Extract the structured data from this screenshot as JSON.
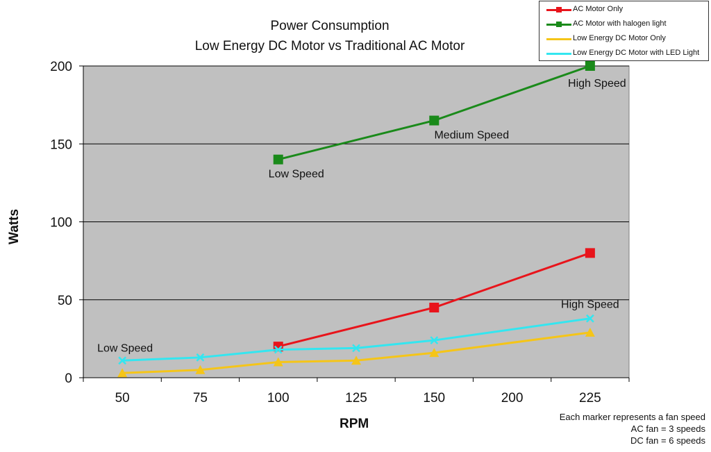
{
  "chart_data": {
    "type": "line",
    "title": "Power Consumption",
    "subtitle": "Low Energy DC Motor vs Traditional AC Motor",
    "xlabel": "RPM",
    "ylabel": "Watts",
    "categories": [
      "50",
      "75",
      "100",
      "125",
      "150",
      "200",
      "225"
    ],
    "ylim": [
      0,
      200
    ],
    "yticks": [
      "0",
      "50",
      "100",
      "150",
      "200"
    ],
    "grid": true,
    "legend_position": "top-right",
    "series": [
      {
        "name": "AC Motor Only",
        "color": "#e8141b",
        "marker": "square",
        "values": [
          null,
          null,
          20,
          null,
          45,
          null,
          80
        ]
      },
      {
        "name": "AC Motor with halogen light",
        "color": "#1a8a1a",
        "marker": "square",
        "values": [
          null,
          null,
          140,
          null,
          165,
          null,
          200
        ]
      },
      {
        "name": "Low Energy DC Motor Only",
        "color": "#f5c518",
        "marker": "triangle",
        "values": [
          3,
          5,
          10,
          11,
          16,
          null,
          29
        ]
      },
      {
        "name": "Low Energy DC Motor with LED Light",
        "color": "#33e6f0",
        "marker": "cross",
        "values": [
          11,
          13,
          18,
          19,
          24,
          null,
          38
        ]
      }
    ],
    "annotations": [
      {
        "text": "Low Speed",
        "series": 1,
        "category": "100"
      },
      {
        "text": "Medium Speed",
        "series": 1,
        "category": "150"
      },
      {
        "text": "High Speed",
        "series": 1,
        "category": "225"
      },
      {
        "text": "Low Speed",
        "series": 3,
        "category": "50"
      },
      {
        "text": "High Speed",
        "series": 3,
        "category": "225"
      }
    ],
    "notes": [
      "Each marker represents a fan speed",
      "AC fan = 3 speeds",
      "DC fan = 6 speeds"
    ],
    "colors": {
      "plot_background": "#c0c0c0",
      "gridline": "#000000"
    }
  }
}
